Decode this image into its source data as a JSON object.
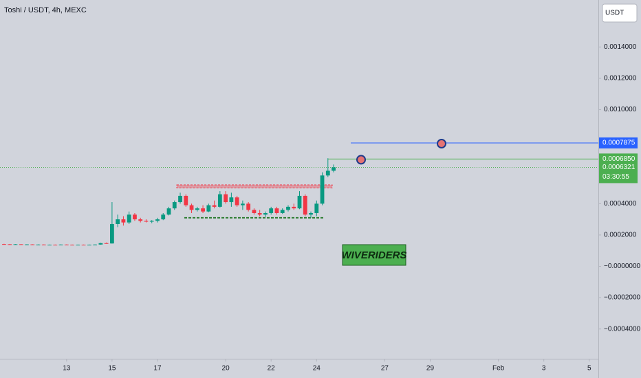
{
  "chart_data": {
    "type": "candlestick",
    "title": "Toshi / USDT, 4h, MEXC",
    "currency_button": "USDT",
    "watermark": "WIVERIDERS",
    "up_color": "#089981",
    "down_color": "#f23645",
    "x": [
      10.25,
      10.5,
      10.75,
      11,
      11.25,
      11.5,
      11.75,
      12,
      12.25,
      12.5,
      12.75,
      13,
      13.25,
      13.5,
      13.75,
      14,
      14.25,
      14.5,
      14.75,
      15,
      15.25,
      15.5,
      15.75,
      16,
      16.25,
      16.5,
      16.75,
      17,
      17.25,
      17.5,
      17.75,
      18,
      18.25,
      18.5,
      18.75,
      19,
      19.25,
      19.5,
      19.75,
      20,
      20.25,
      20.5,
      20.75,
      21,
      21.25,
      21.5,
      21.75,
      22,
      22.25,
      22.5,
      22.75,
      23,
      23.25,
      23.5,
      23.75,
      24,
      24.25,
      24.5,
      24.75
    ],
    "open": [
      0.000142,
      0.000141,
      0.00014,
      0.000141,
      0.000139,
      0.00014,
      0.000138,
      0.000139,
      0.000137,
      0.000138,
      0.000137,
      0.000139,
      0.000138,
      0.000137,
      0.000138,
      0.000137,
      0.000138,
      0.000139,
      0.000148,
      0.000146,
      0.00027,
      0.0003,
      0.00028,
      0.00033,
      0.0003,
      0.00029,
      0.000285,
      0.00029,
      0.0003,
      0.00033,
      0.00037,
      0.00041,
      0.00045,
      0.00039,
      0.00036,
      0.00037,
      0.00035,
      0.00039,
      0.00038,
      0.00046,
      0.00041,
      0.00044,
      0.00039,
      0.0004,
      0.00036,
      0.00034,
      0.00033,
      0.00034,
      0.00037,
      0.00034,
      0.00036,
      0.00038,
      0.00037,
      0.00045,
      0.00033,
      0.00034,
      0.0004,
      0.00058,
      0.00061
    ],
    "high": [
      0.000144,
      0.000143,
      0.000142,
      0.000142,
      0.000141,
      0.000141,
      0.00014,
      0.00014,
      0.000139,
      0.000139,
      0.00014,
      0.00014,
      0.000139,
      0.000139,
      0.000139,
      0.000139,
      0.00014,
      0.00015,
      0.000152,
      0.00041,
      0.00033,
      0.00032,
      0.00035,
      0.00034,
      0.00031,
      0.0003,
      0.000295,
      0.00031,
      0.00034,
      0.00038,
      0.00042,
      0.00047,
      0.00046,
      0.0004,
      0.00038,
      0.00039,
      0.0004,
      0.00042,
      0.00048,
      0.00048,
      0.00047,
      0.00045,
      0.00042,
      0.00041,
      0.00037,
      0.00036,
      0.00035,
      0.00038,
      0.00038,
      0.00037,
      0.00039,
      0.0004,
      0.00048,
      0.00046,
      0.00035,
      0.00042,
      0.0006,
      0.00069,
      0.00065
    ],
    "low": [
      0.00014,
      0.000139,
      0.000139,
      0.000139,
      0.000138,
      0.000138,
      0.000137,
      0.000137,
      0.000136,
      0.000136,
      0.000136,
      0.000137,
      0.000136,
      0.000136,
      0.000136,
      0.000136,
      0.000137,
      0.000138,
      0.000145,
      0.000145,
      0.00025,
      0.00026,
      0.00027,
      0.00029,
      0.00028,
      0.00028,
      0.000275,
      0.00028,
      0.000295,
      0.000325,
      0.00036,
      0.0004,
      0.00038,
      0.00034,
      0.00035,
      0.00034,
      0.000345,
      0.00037,
      0.000375,
      0.0004,
      0.00038,
      0.00038,
      0.00036,
      0.00035,
      0.00033,
      0.00032,
      0.000315,
      0.00033,
      0.00033,
      0.000335,
      0.00035,
      0.00036,
      0.000365,
      0.00032,
      0.00031,
      0.00032,
      0.00039,
      0.00057,
      0.0006
    ],
    "close": [
      0.000141,
      0.00014,
      0.000141,
      0.000139,
      0.00014,
      0.000138,
      0.000139,
      0.000137,
      0.000138,
      0.000137,
      0.000139,
      0.000138,
      0.000137,
      0.000138,
      0.000137,
      0.000138,
      0.000139,
      0.000148,
      0.000146,
      0.00027,
      0.0003,
      0.00028,
      0.00033,
      0.0003,
      0.00029,
      0.000285,
      0.00029,
      0.0003,
      0.00033,
      0.00037,
      0.00041,
      0.00045,
      0.00039,
      0.00036,
      0.00037,
      0.00035,
      0.00039,
      0.00038,
      0.00046,
      0.00041,
      0.00044,
      0.00039,
      0.0004,
      0.00036,
      0.00034,
      0.00033,
      0.00034,
      0.00037,
      0.00034,
      0.00036,
      0.00038,
      0.00037,
      0.00045,
      0.00033,
      0.00034,
      0.0004,
      0.00058,
      0.00061,
      0.000632
    ],
    "xlim": [
      10.07,
      36.4
    ],
    "ylim": [
      -0.00059,
      0.0017
    ],
    "xticks": [
      13,
      15,
      17,
      20,
      22,
      24,
      27,
      29,
      {
        "value": 32,
        "label": "Feb"
      },
      {
        "value": 34,
        "label": "3"
      },
      {
        "value": 36,
        "label": "5"
      }
    ],
    "yticks": [
      {
        "value": 0.0014,
        "label": "0.0014000"
      },
      {
        "value": 0.0012,
        "label": "0.0012000"
      },
      {
        "value": 0.001,
        "label": "0.0010000"
      },
      {
        "value": 0.0004,
        "label": "0.0004000"
      },
      {
        "value": 0.0002,
        "label": "0.0002000"
      },
      {
        "value": 0,
        "label": "−0.0000000"
      },
      {
        "value": -0.0002,
        "label": "−0.0002000"
      },
      {
        "value": -0.0004,
        "label": "−0.0004000"
      }
    ],
    "resistance_zone": [
      0.0005,
      0.00052
    ],
    "support_level": 0.00031,
    "target_lines": [
      {
        "value": 0.0007875,
        "label": "0.0007875",
        "color": "#2962ff"
      },
      {
        "value": 0.000685,
        "label": "0.0006850",
        "color": "#4caf50"
      }
    ],
    "last_price": {
      "value": 0.000632,
      "label": "0.0006321",
      "color": "#4caf50"
    },
    "countdown": "03:30:55"
  }
}
